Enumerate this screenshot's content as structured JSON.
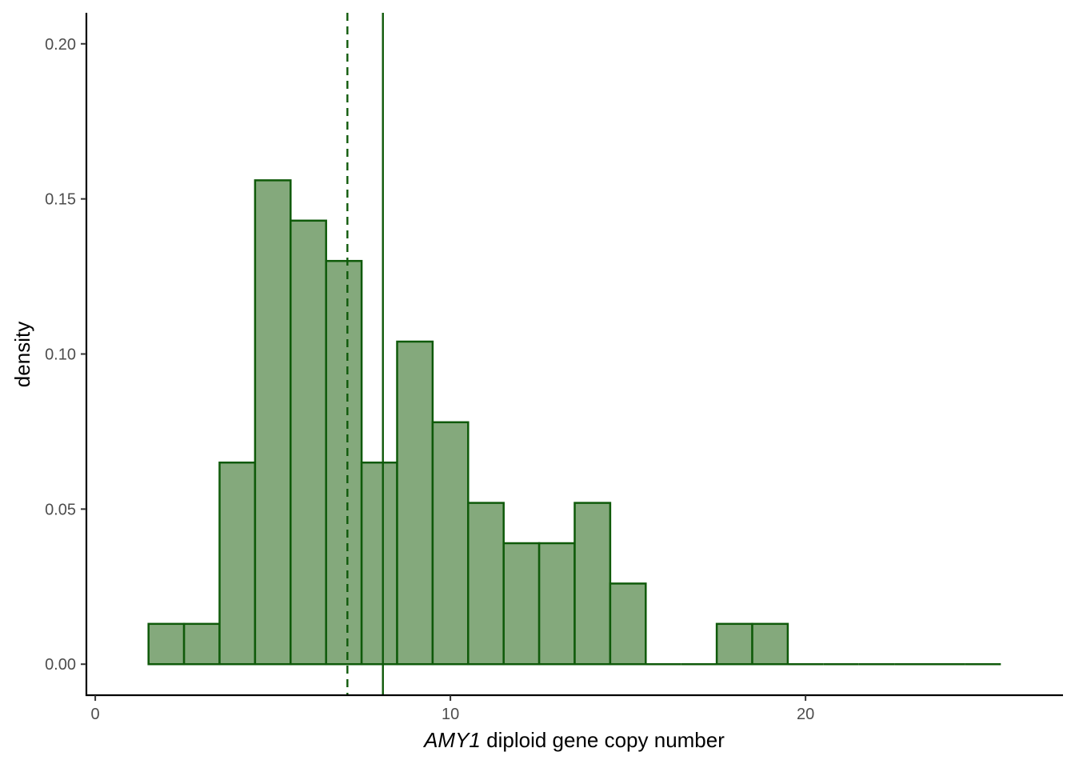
{
  "chart_data": {
    "type": "histogram",
    "title": "",
    "xlabel": {
      "italic_part": "AMY1",
      "rest": " diploid gene copy number"
    },
    "ylabel": "density",
    "xlim": [
      -0.25,
      27.25
    ],
    "ylim": [
      -0.01,
      0.21
    ],
    "x_ticks": [
      {
        "value": 0,
        "label": "0"
      },
      {
        "value": 10,
        "label": "10"
      },
      {
        "value": 20,
        "label": "20"
      }
    ],
    "y_ticks": [
      {
        "value": 0.0,
        "label": "0.00"
      },
      {
        "value": 0.05,
        "label": "0.05"
      },
      {
        "value": 0.1,
        "label": "0.10"
      },
      {
        "value": 0.15,
        "label": "0.15"
      },
      {
        "value": 0.2,
        "label": "0.20"
      }
    ],
    "bin_width": 1,
    "bins": [
      {
        "center": 2,
        "density": 0.013
      },
      {
        "center": 3,
        "density": 0.013
      },
      {
        "center": 4,
        "density": 0.065
      },
      {
        "center": 5,
        "density": 0.156
      },
      {
        "center": 6,
        "density": 0.143
      },
      {
        "center": 7,
        "density": 0.13
      },
      {
        "center": 8,
        "density": 0.065
      },
      {
        "center": 9,
        "density": 0.104
      },
      {
        "center": 10,
        "density": 0.078
      },
      {
        "center": 11,
        "density": 0.052
      },
      {
        "center": 12,
        "density": 0.039
      },
      {
        "center": 13,
        "density": 0.039
      },
      {
        "center": 14,
        "density": 0.052
      },
      {
        "center": 15,
        "density": 0.026
      },
      {
        "center": 16,
        "density": 0.0
      },
      {
        "center": 17,
        "density": 0.0
      },
      {
        "center": 18,
        "density": 0.013
      },
      {
        "center": 19,
        "density": 0.013
      },
      {
        "center": 20,
        "density": 0.0
      },
      {
        "center": 21,
        "density": 0.0
      },
      {
        "center": 22,
        "density": 0.0
      },
      {
        "center": 23,
        "density": 0.0
      },
      {
        "center": 24,
        "density": 0.0
      },
      {
        "center": 25,
        "density": 0.0
      }
    ],
    "reference_lines": [
      {
        "x": 7.1,
        "style": "dashed"
      },
      {
        "x": 8.1,
        "style": "solid"
      }
    ],
    "grid": false,
    "legend": "none",
    "colors": {
      "bar_fill": "#84a97c",
      "bar_stroke": "#0f5a0a",
      "ref_line": "#0f5a0a",
      "axis": "#000000",
      "tick_text": "#4d4d4d"
    }
  }
}
